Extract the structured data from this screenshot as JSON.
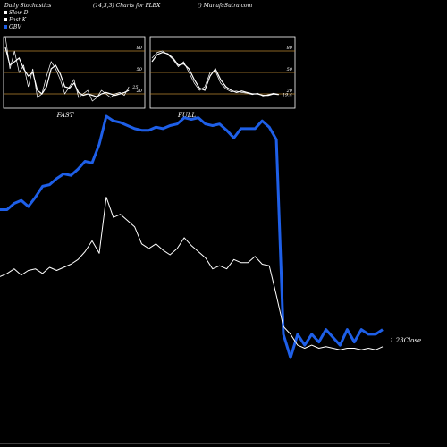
{
  "header": {
    "left": "Daily Stochastics",
    "center": "(14,3,3) Charts for PLBX",
    "right": "() MunafaSutra.com"
  },
  "colors": {
    "background": "#000000",
    "obv": "#1e5fe8",
    "close": "#ffffff",
    "slow_d": "#ffffff",
    "fast_k": "#ffffff",
    "level_line": "#b8862f",
    "panel_border": "#ffffff"
  },
  "chart_data": [
    {
      "type": "line",
      "panel": "FAST",
      "title": "FAST",
      "ylim": [
        0,
        100
      ],
      "yticks": [
        "80",
        "50",
        "20"
      ],
      "last_value_label": "25",
      "series": [
        {
          "name": "Slow D",
          "values": [
            85,
            60,
            65,
            70,
            55,
            45,
            50,
            25,
            20,
            30,
            55,
            60,
            48,
            30,
            28,
            35,
            22,
            18,
            20,
            18,
            16,
            20,
            22,
            20,
            18,
            20,
            22,
            25
          ]
        },
        {
          "name": "Fast K",
          "values": [
            100,
            55,
            80,
            50,
            60,
            30,
            55,
            15,
            20,
            45,
            65,
            55,
            40,
            20,
            30,
            40,
            15,
            20,
            25,
            10,
            15,
            25,
            20,
            15,
            20,
            22,
            18,
            30
          ]
        }
      ]
    },
    {
      "type": "line",
      "panel": "FULL",
      "title": "FULL",
      "ylim": [
        0,
        100
      ],
      "yticks": [
        "80",
        "50",
        "20"
      ],
      "last_value_label": "19.4",
      "series": [
        {
          "name": "Slow D",
          "values": [
            65,
            75,
            78,
            76,
            70,
            60,
            62,
            55,
            40,
            28,
            25,
            45,
            55,
            40,
            30,
            25,
            22,
            24,
            22,
            20,
            20,
            18,
            18,
            20,
            19
          ]
        },
        {
          "name": "Fast K",
          "values": [
            70,
            78,
            80,
            75,
            68,
            58,
            65,
            50,
            35,
            25,
            30,
            50,
            52,
            35,
            27,
            23,
            24,
            22,
            21,
            19,
            21,
            17,
            19,
            21,
            19.4
          ]
        }
      ]
    },
    {
      "type": "line",
      "panel": "main",
      "last_value_label": "1.23Close",
      "series": [
        {
          "name": "OBV",
          "values": [
            60,
            60,
            64,
            66,
            62,
            68,
            75,
            76,
            80,
            83,
            82,
            86,
            91,
            90,
            102,
            120,
            117,
            116,
            114,
            112,
            111,
            111,
            113,
            112,
            114,
            115,
            119,
            118,
            119,
            115,
            114,
            115,
            111,
            106,
            112,
            112,
            112,
            117,
            113,
            105,
            -20,
            -35,
            -20,
            -27,
            -20,
            -25,
            -17,
            -22,
            -27,
            -17,
            -25,
            -17,
            -20,
            -20,
            -17
          ]
        },
        {
          "name": "Close",
          "values": [
            17,
            19,
            22,
            18,
            21,
            22,
            19,
            23,
            21,
            23,
            25,
            28,
            33,
            40,
            32,
            68,
            55,
            57,
            53,
            49,
            38,
            35,
            38,
            34,
            31,
            35,
            42,
            37,
            33,
            29,
            22,
            24,
            22,
            28,
            26,
            26,
            30,
            25,
            24,
            5,
            -15,
            -20,
            -27,
            -29,
            -27,
            -29,
            -28,
            -29,
            -30,
            -29,
            -29,
            -30,
            -29,
            -30,
            -28
          ]
        }
      ]
    }
  ],
  "legend": [
    {
      "label": "Slow D",
      "color": "#ffffff"
    },
    {
      "label": "Fast K",
      "color": "#ffffff"
    },
    {
      "label": "OBV",
      "color": "#1e5fe8"
    }
  ]
}
